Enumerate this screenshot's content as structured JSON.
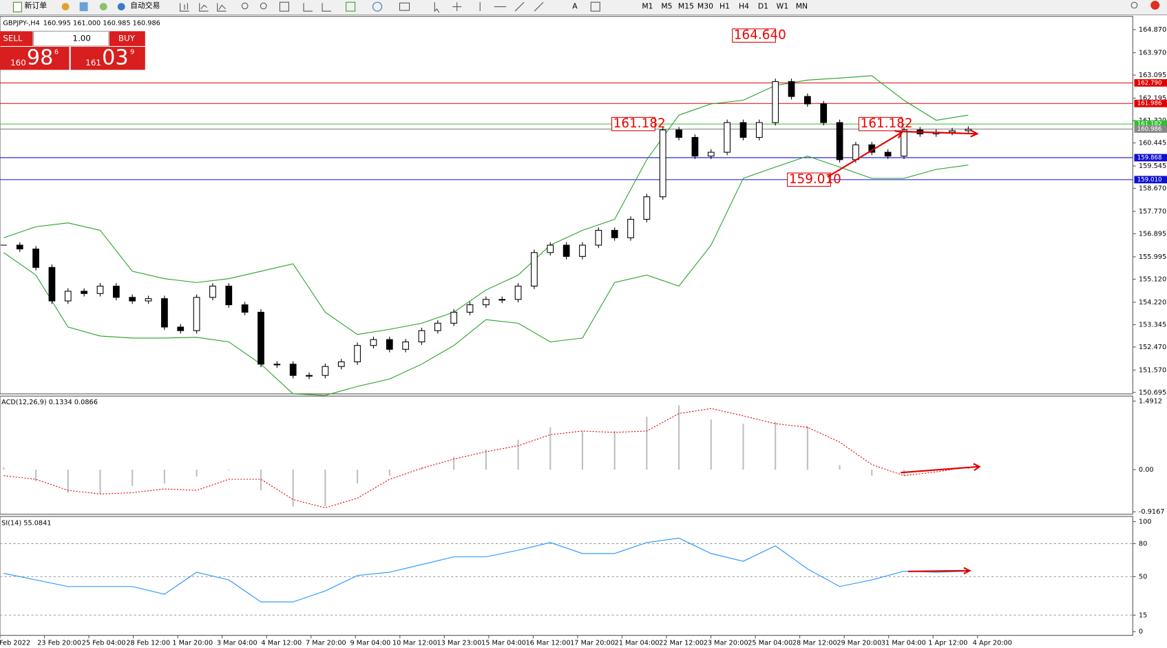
{
  "toolbar": {
    "new_order": "新订单",
    "auto_trading": "自动交易",
    "timeframes": [
      "M1",
      "M5",
      "M15",
      "M30",
      "H1",
      "H4",
      "D1",
      "W1",
      "MN"
    ]
  },
  "trade_panel": {
    "sell": "SELL",
    "buy": "BUY",
    "lots": "1.00",
    "bid": {
      "big": "160",
      "main": "98",
      "small": "6"
    },
    "ask": {
      "big": "161",
      "main": "03",
      "small": "9"
    }
  },
  "time_axis": {
    "labels": [
      "Feb 2022",
      "23 Feb 20:00",
      "25 Feb 04:00",
      "28 Feb 12:00",
      "1 Mar 20:00",
      "3 Mar 04:00",
      "4 Mar 12:00",
      "7 Mar 20:00",
      "9 Mar 04:00",
      "10 Mar 12:00",
      "13 Mar 23:00",
      "15 Mar 04:00",
      "16 Mar 12:00",
      "17 Mar 20:00",
      "21 Mar 04:00",
      "22 Mar 12:00",
      "23 Mar 20:00",
      "25 Mar 04:00",
      "28 Mar 12:00",
      "29 Mar 20:00",
      "31 Mar 04:00",
      "1 Apr 12:00",
      "4 Apr 20:00"
    ]
  },
  "chart_data": [
    {
      "type": "candlestick",
      "title": "GBPJPY-,H4",
      "quote": "160.995 161.000 160.985 160.986",
      "values": [
        156.45,
        156.3,
        155.58,
        154.27,
        154.65,
        154.56,
        154.85,
        154.41,
        154.27,
        154.36,
        153.25,
        153.11,
        154.41,
        154.85,
        154.12,
        153.83,
        151.8,
        151.8,
        151.36,
        151.36,
        151.71,
        151.89,
        152.53,
        152.76,
        152.38,
        152.67,
        153.11,
        153.4,
        153.83,
        154.12,
        154.33,
        154.33,
        154.85,
        156.16,
        156.45,
        156.01,
        156.45,
        157.03,
        156.74,
        157.46,
        158.34,
        160.95,
        160.66,
        159.93,
        160.08,
        161.24,
        160.66,
        161.24,
        162.84,
        162.26,
        161.97,
        161.24,
        159.79,
        160.37,
        160.08,
        159.93,
        160.95,
        160.8,
        160.86,
        160.92,
        160.98
      ],
      "bands": {
        "color": "#22a022",
        "upper": [
          156.74,
          157.17,
          157.32,
          157.03,
          155.43,
          155.14,
          154.99,
          155.14,
          155.43,
          155.72,
          153.83,
          152.96,
          153.16,
          153.4,
          153.83,
          154.7,
          155.28,
          156.45,
          157.03,
          157.46,
          159.79,
          161.53,
          161.97,
          162.11,
          162.69,
          162.9,
          162.98,
          163.07,
          162.11,
          161.33,
          161.53
        ],
        "lower": [
          156.16,
          155.28,
          153.25,
          152.9,
          152.82,
          152.82,
          152.85,
          152.67,
          151.8,
          150.64,
          150.58,
          150.93,
          151.22,
          151.8,
          152.53,
          153.54,
          153.4,
          152.67,
          152.82,
          154.99,
          155.28,
          154.85,
          156.45,
          159.06,
          159.5,
          159.93,
          159.5,
          159.06,
          159.06,
          159.41,
          159.58
        ]
      },
      "ylim": [
        150.64,
        165.39
      ],
      "yticks": [
        {
          "value": 164.87,
          "label": "164.870"
        },
        {
          "value": 163.97,
          "label": "163.970"
        },
        {
          "value": 163.095,
          "label": "163.095"
        },
        {
          "value": 162.195,
          "label": "162.195"
        },
        {
          "value": 161.32,
          "label": "161.320"
        },
        {
          "value": 160.445,
          "label": "160.445"
        },
        {
          "value": 159.545,
          "label": "159.545"
        },
        {
          "value": 158.67,
          "label": "158.670"
        },
        {
          "value": 157.77,
          "label": "157.770"
        },
        {
          "value": 156.895,
          "label": "156.895"
        },
        {
          "value": 155.995,
          "label": "155.995"
        },
        {
          "value": 155.12,
          "label": "155.120"
        },
        {
          "value": 154.22,
          "label": "154.220"
        },
        {
          "value": 153.345,
          "label": "153.345"
        },
        {
          "value": 152.47,
          "label": "152.470"
        },
        {
          "value": 151.57,
          "label": "151.570"
        },
        {
          "value": 150.695,
          "label": "150.695"
        }
      ],
      "levels": [
        {
          "value": 162.79,
          "label": "162.790",
          "color": "#e00000"
        },
        {
          "value": 161.986,
          "label": "161.986",
          "color": "#e00000"
        },
        {
          "value": 161.182,
          "label": "161.182",
          "color": "#2fbf2f"
        },
        {
          "value": 160.986,
          "label": "160.986",
          "color": "#888888"
        },
        {
          "value": 159.868,
          "label": "159.868",
          "color": "#1010d0"
        },
        {
          "value": 159.01,
          "label": "159.010",
          "color": "#1010d0"
        }
      ],
      "annotations": [
        {
          "value": 164.64,
          "label": "164.640"
        },
        {
          "value": 161.182,
          "label": "161.182"
        },
        {
          "value": 161.182,
          "label": "161.182"
        },
        {
          "value": 159.01,
          "label": "159.010"
        }
      ]
    },
    {
      "type": "macd",
      "title": "ACD(12,26,9) 0.1334 0.0866",
      "values": [
        0.05,
        -0.25,
        -0.5,
        -0.53,
        -0.35,
        -0.3,
        -0.15,
        0,
        -0.45,
        -0.8,
        -0.8,
        -0.3,
        -0.13,
        0.05,
        0.28,
        0.44,
        0.65,
        0.92,
        0.84,
        0.84,
        1.15,
        1.4,
        1.09,
        1,
        1.04,
        0.95,
        0.1,
        -0.13,
        -0.13,
        0,
        0.06
      ],
      "signal": [
        -0.13,
        -0.21,
        -0.45,
        -0.53,
        -0.5,
        -0.42,
        -0.45,
        -0.21,
        -0.21,
        -0.65,
        -0.83,
        -0.62,
        -0.21,
        0.03,
        0.23,
        0.39,
        0.52,
        0.76,
        0.84,
        0.81,
        0.84,
        1.22,
        1.33,
        1.17,
        1,
        0.92,
        0.6,
        0.11,
        -0.13,
        -0.05,
        0.06
      ],
      "color": "#c0c0c0",
      "signal_color": "#e00000",
      "ylim": [
        -0.97,
        1.6
      ],
      "yticks": [
        1.4912,
        {
          "value": 0,
          "label": "0.00"
        },
        -0.9167
      ]
    },
    {
      "type": "line",
      "title": "SI(14) 55.0841",
      "values": [
        53,
        47,
        41,
        41,
        41,
        34,
        54,
        47,
        27,
        27,
        37,
        51,
        54,
        61,
        68,
        68,
        74,
        81,
        71,
        71,
        81,
        85,
        71,
        64,
        78,
        57,
        41,
        47,
        55,
        54,
        55
      ],
      "color": "#1e90ff",
      "ylim": [
        -3.4,
        104.7
      ],
      "yticks": [
        100,
        80,
        50,
        15,
        0
      ],
      "levels": [
        80,
        50,
        15
      ]
    }
  ]
}
